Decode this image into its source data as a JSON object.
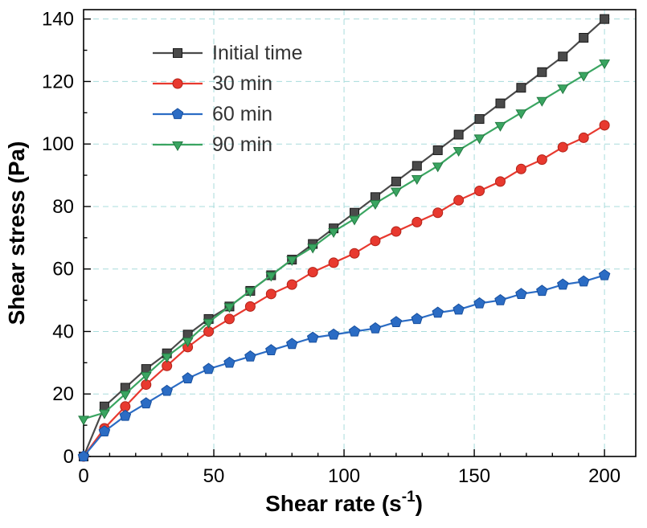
{
  "figure": {
    "background": "#ffffff",
    "frame_color": "#000000",
    "grid_color": "#a8dcdc"
  },
  "chart_data": {
    "type": "line",
    "title": "",
    "xlabel": {
      "prefix": "Shear rate (s",
      "sup": "-1",
      "suffix": ")"
    },
    "ylabel": "Shear stress (Pa)",
    "xlim": [
      0,
      212
    ],
    "ylim": [
      0,
      143
    ],
    "xticks": [
      0,
      50,
      100,
      150,
      200
    ],
    "yticks": [
      0,
      20,
      40,
      60,
      80,
      100,
      120,
      140
    ],
    "x_minor_step": 10,
    "y_minor_step": 10,
    "grid": "dashed",
    "legend_position": "upper-left-inside",
    "x": [
      0,
      8,
      16,
      24,
      32,
      40,
      48,
      56,
      64,
      72,
      80,
      88,
      96,
      104,
      112,
      120,
      128,
      136,
      144,
      152,
      160,
      168,
      176,
      184,
      192,
      200
    ],
    "series": [
      {
        "name": "Initial time",
        "marker": "square",
        "color": "#4a4a4a",
        "edge": "#1a1a1a",
        "values": [
          0,
          16,
          22,
          28,
          33,
          39,
          44,
          48,
          53,
          58,
          63,
          68,
          73,
          78,
          83,
          88,
          93,
          98,
          103,
          108,
          113,
          118,
          123,
          128,
          134,
          140
        ]
      },
      {
        "name": "30 min",
        "marker": "circle",
        "color": "#e8392f",
        "edge": "#b22218",
        "values": [
          0,
          9,
          16,
          23,
          29,
          35,
          40,
          44,
          48,
          52,
          55,
          59,
          62,
          65,
          69,
          72,
          75,
          78,
          82,
          85,
          88,
          92,
          95,
          99,
          102,
          106
        ]
      },
      {
        "name": "60 min",
        "marker": "pentagon",
        "color": "#2b6cc4",
        "edge": "#174f9e",
        "values": [
          0,
          8,
          13,
          17,
          21,
          25,
          28,
          30,
          32,
          34,
          36,
          38,
          39,
          40,
          41,
          43,
          44,
          46,
          47,
          49,
          50,
          52,
          53,
          55,
          56,
          58
        ]
      },
      {
        "name": "90 min",
        "marker": "triangle-down",
        "color": "#3aa561",
        "edge": "#237a42",
        "values": [
          12,
          14,
          20,
          26,
          32,
          37,
          43,
          48,
          53,
          58,
          63,
          67,
          72,
          76,
          81,
          85,
          89,
          93,
          98,
          102,
          106,
          110,
          114,
          118,
          122,
          126
        ]
      }
    ]
  }
}
